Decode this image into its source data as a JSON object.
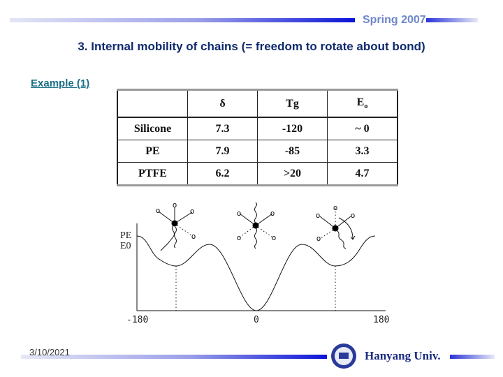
{
  "header": {
    "season": "Spring 2007",
    "title": "3. Internal mobility of chains (= freedom to rotate about bond)"
  },
  "example_label": "Example (1)",
  "table": {
    "columns": [
      "",
      "δ",
      "Tg",
      "Eo"
    ],
    "rows": [
      [
        "Silicone",
        "7.3",
        "-120",
        "~ 0"
      ],
      [
        "PE",
        "7.9",
        "-85",
        "3.3"
      ],
      [
        "PTFE",
        "6.2",
        ">20",
        "4.7"
      ]
    ]
  },
  "diagram": {
    "ylabel_line1": "PE",
    "ylabel_line2": "E0",
    "xticks": [
      "-180",
      "0",
      "180"
    ]
  },
  "footer": {
    "date": "3/10/2021",
    "university": "Hanyang Univ."
  },
  "colors": {
    "accent": "#0b14d8",
    "season": "#6c86c8",
    "title": "#102a6e"
  }
}
